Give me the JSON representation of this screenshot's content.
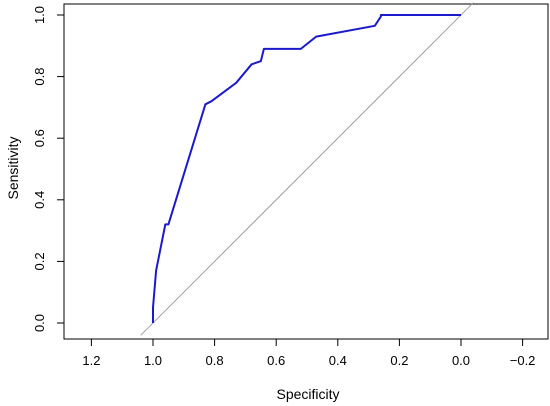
{
  "chart_data": {
    "type": "line",
    "title": "",
    "xlabel": "Specificity",
    "ylabel": "Sensitivity",
    "x_reversed": true,
    "xlim": [
      1.25,
      -0.25
    ],
    "ylim": [
      0.0,
      1.0
    ],
    "x_ticks": [
      1.2,
      1.0,
      0.8,
      0.6,
      0.4,
      0.2,
      0.0,
      -0.2
    ],
    "x_tick_labels": [
      "1.2",
      "1.0",
      "0.8",
      "0.6",
      "0.4",
      "0.2",
      "0.0",
      "−0.2"
    ],
    "y_ticks": [
      0.0,
      0.2,
      0.4,
      0.6,
      0.8,
      1.0
    ],
    "y_tick_labels": [
      "0.0",
      "0.2",
      "0.4",
      "0.6",
      "0.8",
      "1.0"
    ],
    "grid": false,
    "reference_line": {
      "from": [
        1.04,
        -0.04
      ],
      "to": [
        -0.04,
        1.04
      ],
      "color": "#a0a0a0"
    },
    "series": [
      {
        "color": "#1a1acc",
        "x": [
          1.0,
          1.0,
          0.99,
          0.96,
          0.95,
          0.83,
          0.81,
          0.73,
          0.68,
          0.65,
          0.64,
          0.52,
          0.47,
          0.28,
          0.26,
          0.26,
          0.0
        ],
        "y": [
          0.0,
          0.05,
          0.17,
          0.32,
          0.32,
          0.71,
          0.72,
          0.78,
          0.84,
          0.85,
          0.89,
          0.89,
          0.93,
          0.965,
          0.995,
          1.0,
          1.0
        ]
      }
    ]
  }
}
